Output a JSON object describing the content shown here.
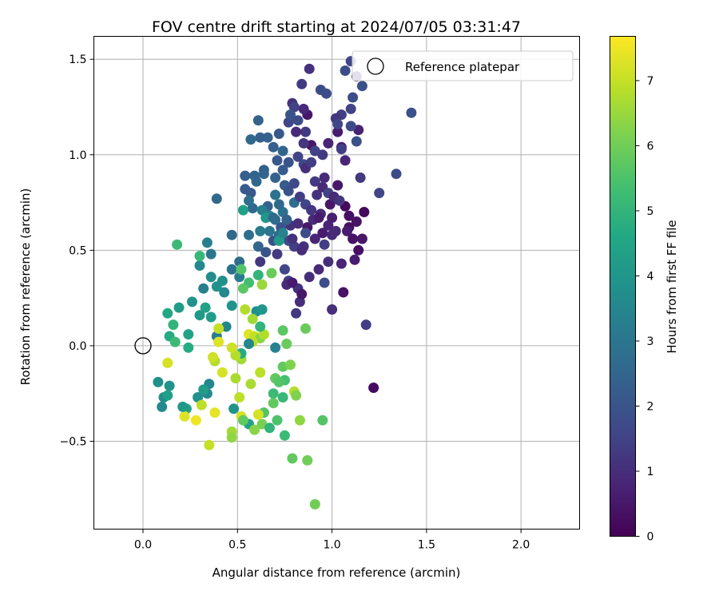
{
  "chart_data": {
    "type": "scatter",
    "title": "FOV centre drift starting at 2024/07/05 03:31:47",
    "xlabel": "Angular distance from reference (arcmin)",
    "ylabel": "Rotation from reference (arcmin)",
    "xlim": [
      -0.26,
      2.31
    ],
    "ylim": [
      -0.96,
      1.62
    ],
    "xticks": [
      0.0,
      0.5,
      1.0,
      1.5,
      2.0
    ],
    "xtick_labels": [
      "0.0",
      "0.5",
      "1.0",
      "1.5",
      "2.0"
    ],
    "yticks": [
      -0.5,
      0.0,
      0.5,
      1.0,
      1.5
    ],
    "ytick_labels": [
      "−0.5",
      "0.0",
      "0.5",
      "1.0",
      "1.5"
    ],
    "grid": true,
    "legend": {
      "placement": "top-right",
      "entries": [
        "Reference platepar"
      ]
    },
    "reference_point": {
      "x": 0.0,
      "y": 0.0,
      "label": "Reference platepar"
    },
    "colorbar": {
      "label": "Hours from first FF file",
      "colormap": "viridis",
      "range": [
        0,
        7.68
      ],
      "ticks": [
        0,
        1,
        2,
        3,
        4,
        5,
        6,
        7
      ],
      "tick_labels": [
        "0",
        "1",
        "2",
        "3",
        "4",
        "5",
        "6",
        "7"
      ]
    },
    "points": [
      [
        1.22,
        -0.22,
        0.2
      ],
      [
        1.06,
        0.28,
        0.4
      ],
      [
        1.09,
        0.62,
        0.3
      ],
      [
        1.07,
        0.73,
        0.2
      ],
      [
        0.99,
        0.74,
        0.5
      ],
      [
        1.03,
        0.84,
        0.5
      ],
      [
        0.96,
        0.88,
        0.9
      ],
      [
        1.07,
        0.97,
        0.8
      ],
      [
        1.14,
        1.13,
        0.7
      ],
      [
        1.05,
        1.04,
        0.6
      ],
      [
        1.03,
        1.12,
        0.6
      ],
      [
        0.89,
        1.05,
        0.5
      ],
      [
        0.98,
        1.06,
        0.8
      ],
      [
        0.87,
        1.21,
        0.5
      ],
      [
        0.85,
        1.24,
        0.9
      ],
      [
        0.79,
        1.27,
        1.1
      ],
      [
        0.84,
        1.37,
        1.3
      ],
      [
        0.88,
        1.45,
        1.1
      ],
      [
        0.94,
        1.34,
        1.8
      ],
      [
        0.97,
        1.32,
        1.8
      ],
      [
        1.07,
        1.44,
        1.8
      ],
      [
        1.1,
        1.49,
        1.6
      ],
      [
        1.16,
        1.36,
        1.9
      ],
      [
        1.13,
        1.41,
        1.0
      ],
      [
        1.11,
        1.3,
        1.8
      ],
      [
        1.1,
        1.24,
        1.5
      ],
      [
        1.05,
        1.21,
        1.4
      ],
      [
        1.02,
        1.19,
        1.2
      ],
      [
        1.03,
        1.16,
        1.6
      ],
      [
        1.1,
        1.15,
        1.7
      ],
      [
        1.13,
        1.07,
        1.9
      ],
      [
        1.05,
        1.03,
        1.4
      ],
      [
        0.95,
        1.0,
        1.3
      ],
      [
        0.91,
        1.02,
        1.5
      ],
      [
        0.85,
        0.95,
        1.7
      ],
      [
        0.82,
        0.99,
        1.6
      ],
      [
        0.77,
        0.96,
        2.0
      ],
      [
        0.74,
        0.92,
        2.2
      ],
      [
        0.7,
        0.88,
        2.4
      ],
      [
        0.64,
        0.92,
        2.3
      ],
      [
        0.6,
        0.86,
        2.6
      ],
      [
        0.57,
        0.8,
        2.1
      ],
      [
        0.54,
        0.82,
        2.2
      ],
      [
        0.58,
        0.72,
        2.6
      ],
      [
        0.66,
        0.73,
        2.4
      ],
      [
        0.7,
        0.66,
        2.8
      ],
      [
        0.74,
        0.7,
        2.9
      ],
      [
        0.8,
        0.75,
        2.7
      ],
      [
        0.83,
        0.78,
        1.4
      ],
      [
        0.86,
        0.74,
        1.6
      ],
      [
        0.89,
        0.71,
        1.2
      ],
      [
        0.92,
        0.79,
        1.1
      ],
      [
        0.94,
        0.69,
        0.9
      ],
      [
        0.98,
        0.63,
        0.8
      ],
      [
        1.02,
        0.6,
        0.9
      ],
      [
        1.08,
        0.6,
        0.6
      ],
      [
        1.11,
        0.56,
        0.4
      ],
      [
        1.16,
        0.56,
        0.5
      ],
      [
        1.14,
        0.5,
        0.3
      ],
      [
        1.12,
        0.45,
        0.6
      ],
      [
        1.05,
        0.43,
        0.8
      ],
      [
        0.98,
        0.44,
        1.0
      ],
      [
        0.93,
        0.4,
        0.9
      ],
      [
        0.88,
        0.36,
        1.0
      ],
      [
        0.82,
        0.3,
        1.1
      ],
      [
        0.77,
        0.34,
        1.4
      ],
      [
        0.83,
        0.23,
        1.0
      ],
      [
        0.81,
        0.17,
        1.3
      ],
      [
        0.76,
        0.32,
        0.9
      ],
      [
        0.75,
        0.4,
        1.6
      ],
      [
        0.71,
        0.48,
        1.3
      ],
      [
        0.69,
        0.55,
        1.9
      ],
      [
        0.65,
        0.49,
        2.0
      ],
      [
        0.61,
        0.52,
        2.5
      ],
      [
        0.56,
        0.58,
        2.8
      ],
      [
        0.62,
        0.6,
        3.2
      ],
      [
        0.67,
        0.6,
        3.0
      ],
      [
        0.72,
        0.58,
        2.7
      ],
      [
        0.77,
        0.55,
        1.8
      ],
      [
        0.8,
        0.52,
        1.4
      ],
      [
        0.85,
        0.52,
        1.1
      ],
      [
        0.91,
        0.56,
        0.8
      ],
      [
        0.96,
        0.53,
        1.4
      ],
      [
        1.0,
        0.58,
        0.9
      ],
      [
        1.13,
        0.65,
        0.4
      ],
      [
        1.09,
        0.68,
        0.3
      ],
      [
        1.17,
        0.7,
        0.2
      ],
      [
        1.15,
        0.88,
        1.3
      ],
      [
        1.25,
        0.8,
        1.6
      ],
      [
        1.34,
        0.9,
        1.7
      ],
      [
        1.42,
        1.22,
        1.9
      ],
      [
        1.18,
        0.11,
        1.4
      ],
      [
        1.0,
        0.19,
        1.0
      ],
      [
        0.96,
        0.33,
        1.8
      ],
      [
        0.84,
        0.27,
        0.5
      ],
      [
        0.79,
        0.33,
        0.6
      ],
      [
        0.51,
        0.44,
        2.7
      ],
      [
        0.51,
        0.36,
        3.2
      ],
      [
        0.47,
        0.4,
        2.9
      ],
      [
        0.47,
        0.58,
        2.6
      ],
      [
        0.39,
        0.77,
        2.6
      ],
      [
        0.34,
        0.54,
        3.3
      ],
      [
        0.36,
        0.48,
        3.0
      ],
      [
        0.3,
        0.42,
        3.6
      ],
      [
        0.32,
        0.3,
        3.3
      ],
      [
        0.36,
        0.36,
        3.7
      ],
      [
        0.39,
        0.31,
        3.9
      ],
      [
        0.42,
        0.34,
        3.8
      ],
      [
        0.43,
        0.28,
        3.6
      ],
      [
        0.47,
        0.21,
        3.9
      ],
      [
        0.44,
        0.1,
        3.5
      ],
      [
        0.39,
        0.05,
        3.2
      ],
      [
        0.36,
        0.15,
        4.2
      ],
      [
        0.33,
        0.2,
        4.4
      ],
      [
        0.3,
        0.16,
        4.1
      ],
      [
        0.26,
        0.23,
        3.9
      ],
      [
        0.19,
        0.2,
        4.2
      ],
      [
        0.13,
        0.17,
        4.6
      ],
      [
        0.14,
        0.05,
        4.7
      ],
      [
        0.16,
        0.11,
        5.0
      ],
      [
        0.17,
        0.02,
        5.2
      ],
      [
        0.24,
        0.06,
        4.4
      ],
      [
        0.24,
        -0.01,
        4.7
      ],
      [
        0.18,
        0.53,
        5.2
      ],
      [
        0.3,
        0.47,
        5.1
      ],
      [
        0.52,
        0.4,
        5.6
      ],
      [
        0.56,
        0.33,
        5.3
      ],
      [
        0.6,
        0.18,
        3.8
      ],
      [
        0.63,
        0.19,
        4.0
      ],
      [
        0.61,
        0.37,
        5.0
      ],
      [
        0.68,
        0.38,
        5.9
      ],
      [
        0.63,
        0.32,
        6.5
      ],
      [
        0.54,
        0.19,
        6.8
      ],
      [
        0.58,
        0.14,
        6.6
      ],
      [
        0.56,
        0.06,
        7.3
      ],
      [
        0.59,
        0.05,
        7.0
      ],
      [
        0.62,
        0.04,
        6.3
      ],
      [
        0.64,
        0.06,
        6.8
      ],
      [
        0.58,
        0.02,
        6.9
      ],
      [
        0.62,
        0.1,
        5.0
      ],
      [
        0.7,
        -0.01,
        3.4
      ],
      [
        0.74,
        0.08,
        5.7
      ],
      [
        0.76,
        0.01,
        5.9
      ],
      [
        0.74,
        -0.11,
        5.8
      ],
      [
        0.78,
        -0.1,
        6.2
      ],
      [
        0.7,
        -0.17,
        5.8
      ],
      [
        0.75,
        -0.18,
        5.4
      ],
      [
        0.72,
        -0.19,
        5.6
      ],
      [
        0.69,
        -0.25,
        5.2
      ],
      [
        0.74,
        -0.27,
        5.1
      ],
      [
        0.69,
        -0.3,
        5.8
      ],
      [
        0.71,
        -0.39,
        5.5
      ],
      [
        0.75,
        -0.47,
        5.2
      ],
      [
        0.8,
        -0.24,
        6.8
      ],
      [
        0.81,
        -0.26,
        6.2
      ],
      [
        0.83,
        -0.39,
        6.4
      ],
      [
        0.79,
        -0.59,
        5.8
      ],
      [
        0.87,
        -0.6,
        6.0
      ],
      [
        0.95,
        -0.39,
        5.6
      ],
      [
        0.91,
        -0.83,
        6.0
      ],
      [
        0.86,
        0.09,
        5.9
      ],
      [
        0.62,
        -0.14,
        6.9
      ],
      [
        0.57,
        -0.2,
        6.7
      ],
      [
        0.52,
        -0.07,
        6.6
      ],
      [
        0.52,
        -0.04,
        4.7
      ],
      [
        0.49,
        -0.05,
        6.8
      ],
      [
        0.47,
        -0.01,
        7.1
      ],
      [
        0.49,
        -0.17,
        6.7
      ],
      [
        0.51,
        -0.27,
        6.9
      ],
      [
        0.42,
        -0.14,
        7.2
      ],
      [
        0.38,
        -0.08,
        6.8
      ],
      [
        0.37,
        -0.06,
        7.1
      ],
      [
        0.4,
        0.02,
        7.3
      ],
      [
        0.4,
        0.09,
        7.0
      ],
      [
        0.48,
        -0.33,
        3.9
      ],
      [
        0.52,
        -0.37,
        7.2
      ],
      [
        0.56,
        -0.41,
        4.4
      ],
      [
        0.59,
        -0.44,
        6.3
      ],
      [
        0.63,
        -0.41,
        6.1
      ],
      [
        0.64,
        -0.35,
        5.6
      ],
      [
        0.61,
        -0.36,
        7.2
      ],
      [
        0.67,
        -0.43,
        5.0
      ],
      [
        0.53,
        -0.39,
        5.8
      ],
      [
        0.47,
        -0.45,
        6.6
      ],
      [
        0.47,
        -0.48,
        6.4
      ],
      [
        0.38,
        -0.35,
        7.4
      ],
      [
        0.35,
        -0.52,
        7.0
      ],
      [
        0.34,
        -0.25,
        3.6
      ],
      [
        0.35,
        -0.2,
        3.5
      ],
      [
        0.32,
        -0.23,
        4.2
      ],
      [
        0.29,
        -0.27,
        3.8
      ],
      [
        0.31,
        -0.31,
        6.9
      ],
      [
        0.28,
        -0.39,
        7.5
      ],
      [
        0.23,
        -0.33,
        4.4
      ],
      [
        0.22,
        -0.37,
        7.3
      ],
      [
        0.21,
        -0.32,
        4.1
      ],
      [
        0.14,
        -0.21,
        3.9
      ],
      [
        0.08,
        -0.19,
        3.8
      ],
      [
        0.11,
        -0.27,
        3.7
      ],
      [
        0.1,
        -0.32,
        3.6
      ],
      [
        0.13,
        -0.26,
        4.3
      ],
      [
        0.13,
        -0.09,
        7.2
      ],
      [
        0.56,
        0.01,
        3.5
      ],
      [
        0.53,
        0.3,
        5.7
      ],
      [
        0.62,
        0.44,
        1.2
      ],
      [
        0.64,
        0.9,
        2.5
      ],
      [
        0.66,
        1.09,
        2.4
      ],
      [
        0.62,
        1.09,
        2.3
      ],
      [
        0.57,
        1.08,
        2.6
      ],
      [
        0.61,
        1.18,
        2.4
      ],
      [
        0.72,
        1.11,
        2.1
      ],
      [
        0.77,
        1.17,
        1.6
      ],
      [
        0.8,
        1.25,
        1.5
      ],
      [
        0.78,
        1.21,
        2.0
      ],
      [
        0.82,
        1.18,
        1.8
      ],
      [
        0.86,
        1.12,
        1.3
      ],
      [
        0.81,
        1.12,
        0.9
      ],
      [
        0.85,
        1.06,
        1.2
      ],
      [
        0.86,
        0.93,
        1.0
      ],
      [
        0.89,
        0.96,
        1.4
      ],
      [
        0.91,
        0.86,
        1.3
      ],
      [
        0.95,
        0.83,
        0.9
      ],
      [
        0.98,
        0.8,
        1.5
      ],
      [
        1.01,
        0.78,
        0.9
      ],
      [
        1.04,
        0.76,
        1.2
      ],
      [
        1.0,
        0.67,
        0.7
      ],
      [
        0.95,
        0.59,
        0.6
      ],
      [
        0.87,
        0.62,
        0.5
      ],
      [
        0.9,
        0.66,
        0.9
      ],
      [
        0.93,
        0.67,
        0.6
      ],
      [
        0.78,
        0.63,
        1.1
      ],
      [
        0.82,
        0.64,
        1.0
      ],
      [
        0.73,
        0.62,
        2.0
      ],
      [
        0.76,
        0.66,
        2.4
      ],
      [
        0.72,
        0.74,
        2.6
      ],
      [
        0.7,
        0.79,
        2.9
      ],
      [
        0.75,
        0.84,
        2.2
      ],
      [
        0.77,
        0.81,
        1.9
      ],
      [
        0.8,
        0.85,
        1.7
      ],
      [
        0.74,
        1.02,
        2.5
      ],
      [
        0.71,
        0.97,
        2.1
      ],
      [
        0.69,
        1.04,
        2.3
      ],
      [
        0.63,
        0.71,
        3.3
      ],
      [
        0.67,
        0.68,
        3.4
      ],
      [
        0.56,
        0.76,
        2.8
      ],
      [
        0.54,
        0.89,
        2.3
      ],
      [
        0.59,
        0.89,
        2.5
      ],
      [
        0.65,
        0.67,
        4.0
      ],
      [
        0.53,
        0.71,
        4.3
      ],
      [
        0.69,
        0.67,
        2.6
      ],
      [
        0.72,
        0.55,
        4.1
      ],
      [
        0.74,
        0.59,
        3.4
      ],
      [
        0.79,
        0.56,
        1.1
      ],
      [
        0.84,
        0.5,
        1.0
      ],
      [
        0.86,
        0.59,
        1.8
      ]
    ]
  }
}
